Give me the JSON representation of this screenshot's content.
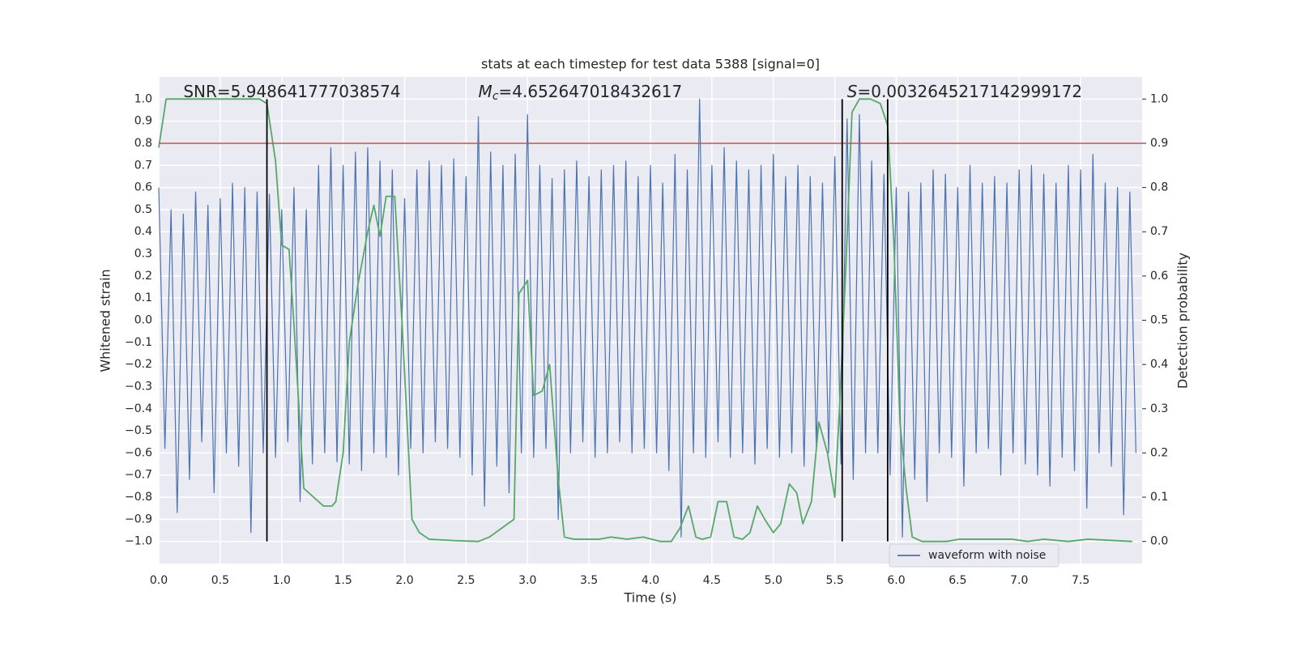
{
  "chart_data": {
    "type": "line",
    "title": "stats at each timestep for test data 5388 [signal=0]",
    "x_label": "Time (s)",
    "y_label": "Whitened strain",
    "y2_label": "Detection probability",
    "xlim": [
      0,
      8
    ],
    "ylim": [
      -1.1,
      1.1
    ],
    "y2lim": [
      -0.05,
      1.05
    ],
    "xticks": [
      {
        "value": 0,
        "label": "0.0"
      },
      0.5,
      {
        "value": 1,
        "label": "1.0"
      },
      1.5,
      {
        "value": 2,
        "label": "2.0"
      },
      2.5,
      {
        "value": 3,
        "label": "3.0"
      },
      3.5,
      {
        "value": 4,
        "label": "4.0"
      },
      4.5,
      {
        "value": 5,
        "label": "5.0"
      },
      5.5,
      {
        "value": 6,
        "label": "6.0"
      },
      6.5,
      {
        "value": 7,
        "label": "7.0"
      },
      7.5
    ],
    "yticks": [
      {
        "value": -1,
        "label": "−1.0"
      },
      {
        "value": -0.9,
        "label": "−0.9"
      },
      {
        "value": -0.8,
        "label": "−0.8"
      },
      {
        "value": -0.7,
        "label": "−0.7"
      },
      {
        "value": -0.6,
        "label": "−0.6"
      },
      {
        "value": -0.5,
        "label": "−0.5"
      },
      {
        "value": -0.4,
        "label": "−0.4"
      },
      {
        "value": -0.3,
        "label": "−0.3"
      },
      {
        "value": -0.2,
        "label": "−0.2"
      },
      {
        "value": -0.1,
        "label": "−0.1"
      },
      {
        "value": 0,
        "label": "0.0"
      },
      0.1,
      0.2,
      0.3,
      0.4,
      0.5,
      0.6,
      0.7,
      0.8,
      0.9,
      {
        "value": 1,
        "label": "1.0"
      }
    ],
    "y2ticks": [
      {
        "value": 0,
        "label": "0.0"
      },
      0.1,
      0.2,
      0.3,
      0.4,
      0.5,
      0.6,
      0.7,
      0.8,
      0.9,
      {
        "value": 1,
        "label": "1.0"
      }
    ],
    "grid": true,
    "legend": "lower right",
    "series": [
      {
        "name": "waveform with noise",
        "color": "#4c72b0",
        "x": [
          0,
          0.05,
          0.1,
          0.15,
          0.2,
          0.25,
          0.3,
          0.35,
          0.4,
          0.45,
          0.5,
          0.55,
          0.6,
          0.65,
          0.7,
          0.75,
          0.8,
          0.85,
          0.9,
          0.95,
          1,
          1.05,
          1.1,
          1.15,
          1.2,
          1.25,
          1.3,
          1.35,
          1.4,
          1.45,
          1.5,
          1.55,
          1.6,
          1.65,
          1.7,
          1.75,
          1.8,
          1.85,
          1.9,
          1.95,
          2,
          2.05,
          2.1,
          2.15,
          2.2,
          2.25,
          2.3,
          2.35,
          2.4,
          2.45,
          2.5,
          2.55,
          2.6,
          2.65,
          2.7,
          2.75,
          2.8,
          2.85,
          2.9,
          2.95,
          3,
          3.05,
          3.1,
          3.15,
          3.2,
          3.25,
          3.3,
          3.35,
          3.4,
          3.45,
          3.5,
          3.55,
          3.6,
          3.65,
          3.7,
          3.75,
          3.8,
          3.85,
          3.9,
          3.95,
          4,
          4.05,
          4.1,
          4.15,
          4.2,
          4.25,
          4.3,
          4.35,
          4.4,
          4.45,
          4.5,
          4.55,
          4.6,
          4.65,
          4.7,
          4.75,
          4.8,
          4.85,
          4.9,
          4.95,
          5,
          5.05,
          5.1,
          5.15,
          5.2,
          5.25,
          5.3,
          5.35,
          5.4,
          5.45,
          5.5,
          5.55,
          5.6,
          5.65,
          5.7,
          5.75,
          5.8,
          5.85,
          5.9,
          5.95,
          6,
          6.05,
          6.1,
          6.15,
          6.2,
          6.25,
          6.3,
          6.35,
          6.4,
          6.45,
          6.5,
          6.55,
          6.6,
          6.65,
          6.7,
          6.75,
          6.8,
          6.85,
          6.9,
          6.95,
          7,
          7.05,
          7.1,
          7.15,
          7.2,
          7.25,
          7.3,
          7.35,
          7.4,
          7.45,
          7.5,
          7.55,
          7.6,
          7.65,
          7.7,
          7.75,
          7.8,
          7.85,
          7.9,
          7.95
        ],
        "values": [
          0.6,
          -0.58,
          0.5,
          -0.87,
          0.48,
          -0.72,
          0.58,
          -0.55,
          0.52,
          -0.78,
          0.55,
          -0.6,
          0.62,
          -0.66,
          0.6,
          -0.96,
          0.58,
          -0.6,
          0.57,
          -0.62,
          0.5,
          -0.55,
          0.6,
          -0.82,
          0.5,
          -0.65,
          0.7,
          -0.6,
          0.78,
          -0.64,
          0.7,
          -0.65,
          0.76,
          -0.68,
          0.78,
          -0.6,
          0.72,
          -0.62,
          0.68,
          -0.7,
          0.55,
          -0.58,
          0.68,
          -0.6,
          0.72,
          -0.55,
          0.7,
          -0.58,
          0.73,
          -0.62,
          0.65,
          -0.7,
          0.92,
          -0.84,
          0.76,
          -0.66,
          0.7,
          -0.78,
          0.75,
          -0.6,
          0.93,
          -0.62,
          0.7,
          -0.58,
          0.64,
          -0.9,
          0.68,
          -0.6,
          0.72,
          -0.55,
          0.65,
          -0.62,
          0.68,
          -0.6,
          0.7,
          -0.55,
          0.72,
          -0.6,
          0.65,
          -0.58,
          0.7,
          -0.6,
          0.62,
          -0.68,
          0.75,
          -0.98,
          0.68,
          -0.6,
          1.0,
          -0.62,
          0.7,
          -0.55,
          0.78,
          -0.62,
          0.72,
          -0.6,
          0.68,
          -0.65,
          0.7,
          -0.58,
          0.75,
          -0.62,
          0.65,
          -0.6,
          0.7,
          -0.66,
          0.65,
          -0.58,
          0.62,
          -0.6,
          0.74,
          -0.65,
          0.91,
          -0.72,
          0.93,
          -0.6,
          0.72,
          -0.6,
          0.66,
          -0.7,
          0.6,
          -0.98,
          0.58,
          -0.72,
          0.62,
          -0.82,
          0.68,
          -0.6,
          0.66,
          -0.62,
          0.6,
          -0.75,
          0.7,
          -0.6,
          0.62,
          -0.58,
          0.65,
          -0.7,
          0.62,
          -0.6,
          0.68,
          -0.65,
          0.7,
          -0.7,
          0.66,
          -0.75,
          0.62,
          -0.62,
          0.7,
          -0.68,
          0.68,
          -0.85,
          0.75,
          -0.6,
          0.62,
          -0.66,
          0.6,
          -0.88,
          0.58,
          -0.6
        ]
      },
      {
        "color": "#55a868",
        "axis": "y2",
        "x": [
          0,
          0.06,
          0.12,
          0.82,
          0.88,
          0.95,
          1,
          1.06,
          1.1,
          1.18,
          1.26,
          1.34,
          1.41,
          1.44,
          1.5,
          1.55,
          1.62,
          1.7,
          1.75,
          1.8,
          1.85,
          1.92,
          1.98,
          2.06,
          2.12,
          2.2,
          2.4,
          2.6,
          2.69,
          2.79,
          2.89,
          2.93,
          3,
          3.05,
          3.12,
          3.18,
          3.25,
          3.3,
          3.38,
          3.58,
          3.68,
          3.81,
          3.94,
          4.08,
          4.17,
          4.24,
          4.31,
          4.37,
          4.42,
          4.49,
          4.55,
          4.62,
          4.68,
          4.75,
          4.81,
          4.87,
          4.93,
          5,
          5.06,
          5.13,
          5.19,
          5.24,
          5.31,
          5.37,
          5.44,
          5.5,
          5.54,
          5.59,
          5.64,
          5.7,
          5.79,
          5.87,
          5.93,
          5.98,
          6.03,
          6.08,
          6.13,
          6.21,
          6.41,
          6.51,
          6.61,
          6.94,
          7.07,
          7.2,
          7.4,
          7.56,
          7.92
        ],
        "values": [
          0.89,
          1.0,
          1.0,
          1.0,
          0.99,
          0.86,
          0.67,
          0.66,
          0.49,
          0.12,
          0.1,
          0.08,
          0.08,
          0.09,
          0.2,
          0.45,
          0.58,
          0.7,
          0.76,
          0.69,
          0.78,
          0.78,
          0.49,
          0.05,
          0.02,
          0.005,
          0.002,
          0,
          0.01,
          0.03,
          0.05,
          0.56,
          0.59,
          0.33,
          0.34,
          0.4,
          0.14,
          0.01,
          0.005,
          0.005,
          0.01,
          0.005,
          0.01,
          0,
          0,
          0.03,
          0.08,
          0.01,
          0.005,
          0.01,
          0.09,
          0.09,
          0.01,
          0.005,
          0.02,
          0.08,
          0.05,
          0.02,
          0.04,
          0.13,
          0.11,
          0.04,
          0.09,
          0.27,
          0.2,
          0.1,
          0.31,
          0.62,
          0.97,
          1.0,
          1.0,
          0.99,
          0.94,
          0.68,
          0.27,
          0.12,
          0.01,
          0,
          0,
          0.005,
          0.005,
          0.005,
          0,
          0.005,
          0,
          0.005,
          0
        ]
      }
    ],
    "hline": {
      "y": 0.8,
      "color": "#c44e52"
    },
    "vlines": {
      "x": [
        0.88,
        5.56,
        5.93
      ],
      "range": [
        -1,
        1
      ],
      "color": "#000000"
    },
    "annotations": [
      {
        "text": "SNR=5.948641777038574",
        "x": 0.2
      },
      {
        "symbol": "M",
        "subscript": "c",
        "text": "=4.652647018432617",
        "x": 2.6
      },
      {
        "symbol": "S",
        "text": "=0.0032645217142999172",
        "x": 5.6
      }
    ]
  }
}
